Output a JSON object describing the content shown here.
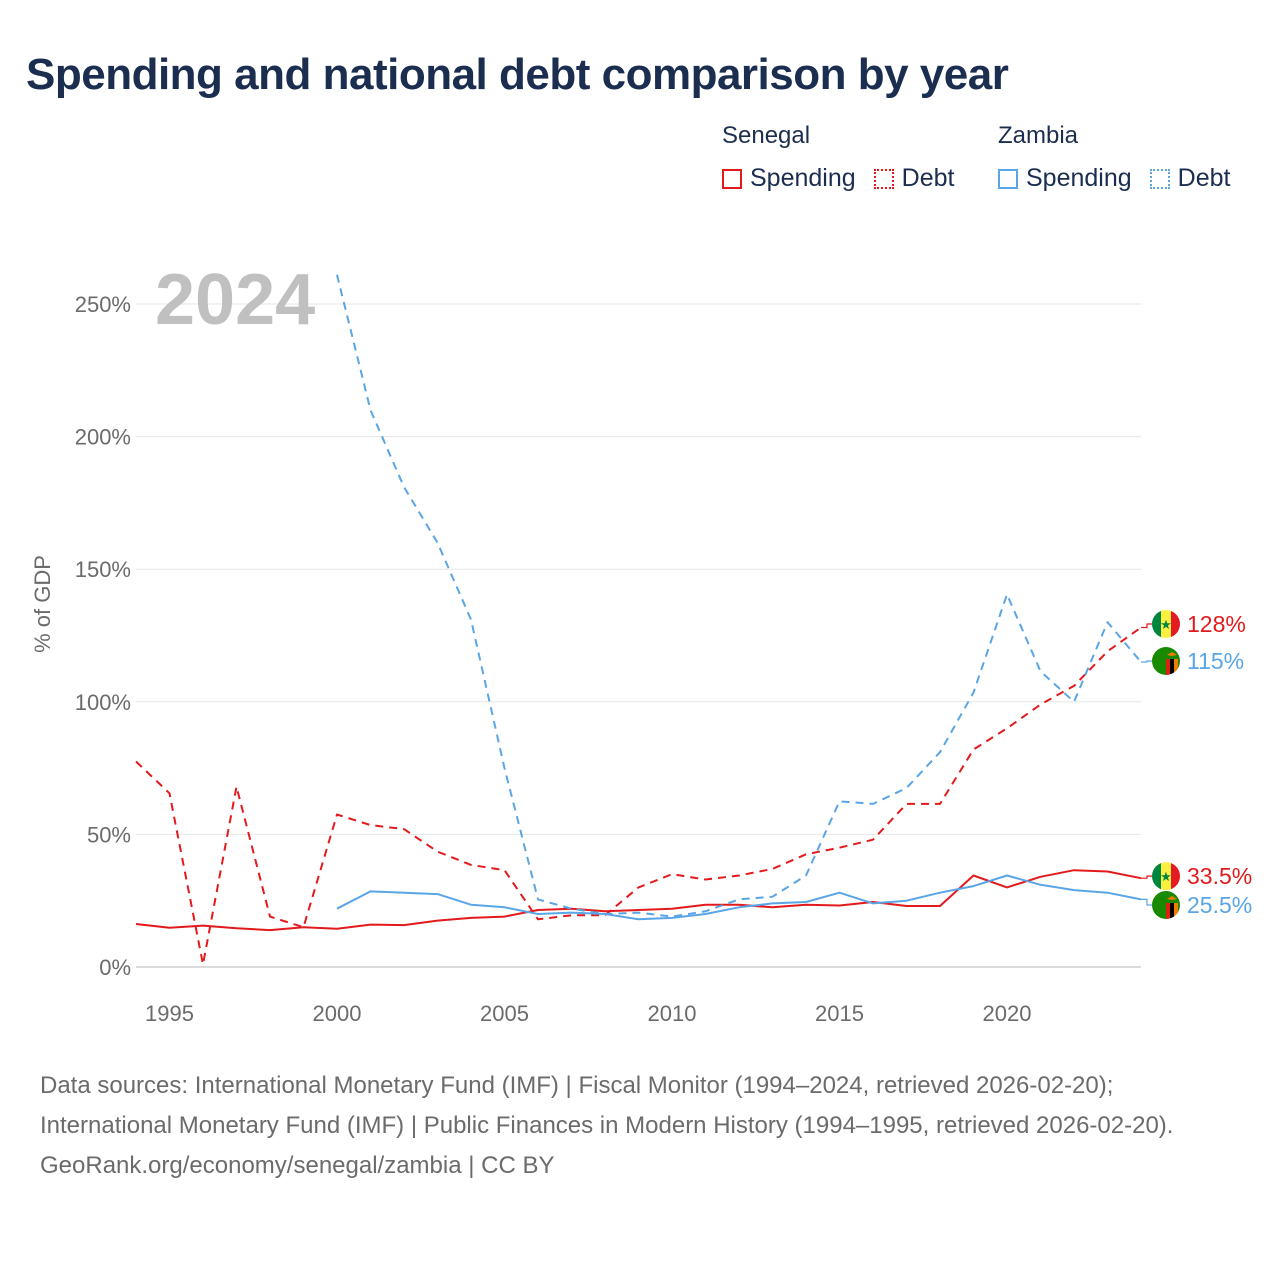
{
  "title": "Spending and national debt comparison by year",
  "legend": {
    "groups": [
      {
        "name": "Senegal",
        "color": "#e31a1c",
        "items": [
          "Spending",
          "Debt"
        ]
      },
      {
        "name": "Zambia",
        "color": "#5aa5e6",
        "items": [
          "Spending",
          "Debt"
        ]
      }
    ]
  },
  "footer": {
    "sources": "Data sources: International Monetary Fund (IMF) | Fiscal Monitor (1994–2024, retrieved 2026-02-20); International Monetary Fund (IMF) | Public Finances in Modern History (1994–1995, retrieved 2026-02-20).",
    "credit": "GeoRank.org/economy/senegal/zambia | CC BY"
  },
  "chart_data": {
    "type": "line",
    "title": "Spending and national debt comparison by year",
    "year_label": "2024",
    "ylabel": "% of GDP",
    "xlabel": "",
    "xlim": [
      1994,
      2024
    ],
    "ylim": [
      0,
      260
    ],
    "x_ticks": [
      1995,
      2000,
      2005,
      2010,
      2015,
      2020
    ],
    "y_ticks": [
      0,
      50,
      100,
      150,
      200,
      250
    ],
    "y_tick_labels": [
      "0%",
      "50%",
      "100%",
      "150%",
      "200%",
      "250%"
    ],
    "grid": true,
    "series": [
      {
        "name": "Senegal Spending",
        "country": "Senegal",
        "metric": "Spending",
        "color": "#e31a1c",
        "style": "solid",
        "x": [
          1994,
          1995,
          1996,
          1997,
          1998,
          1999,
          2000,
          2001,
          2002,
          2003,
          2004,
          2005,
          2006,
          2007,
          2008,
          2009,
          2010,
          2011,
          2012,
          2013,
          2014,
          2015,
          2016,
          2017,
          2018,
          2019,
          2020,
          2021,
          2022,
          2023,
          2024
        ],
        "values": [
          16.2,
          14.8,
          15.6,
          14.6,
          13.9,
          15.0,
          14.4,
          16.0,
          15.8,
          17.5,
          18.5,
          19.0,
          21.5,
          22.0,
          21.0,
          21.5,
          22.0,
          23.5,
          23.5,
          22.5,
          23.5,
          23.2,
          24.5,
          23.0,
          23.0,
          34.5,
          30.0,
          34.0,
          36.5,
          36.0,
          33.5
        ],
        "end_label": "33.5%"
      },
      {
        "name": "Senegal Debt",
        "country": "Senegal",
        "metric": "Debt",
        "color": "#e31a1c",
        "style": "dashed",
        "x": [
          1994,
          1995,
          1996,
          1997,
          1998,
          1999,
          2000,
          2001,
          2002,
          2003,
          2004,
          2005,
          2006,
          2007,
          2008,
          2009,
          2010,
          2011,
          2012,
          2013,
          2014,
          2015,
          2016,
          2017,
          2018,
          2019,
          2020,
          2021,
          2022,
          2023,
          2024
        ],
        "values": [
          77.5,
          65.5,
          1.0,
          68.0,
          19.0,
          15.0,
          57.5,
          53.5,
          52.0,
          43.5,
          38.5,
          36.5,
          18.0,
          19.5,
          19.5,
          30.0,
          35.0,
          33.0,
          34.5,
          37.0,
          42.5,
          45.0,
          48.0,
          61.5,
          61.5,
          82.0,
          90.0,
          99.0,
          106.0,
          119.0,
          128.0
        ],
        "end_label": "128%"
      },
      {
        "name": "Zambia Spending",
        "country": "Zambia",
        "metric": "Spending",
        "color": "#5aa5e6",
        "style": "solid",
        "x": [
          2000,
          2001,
          2002,
          2003,
          2004,
          2005,
          2006,
          2007,
          2008,
          2009,
          2010,
          2011,
          2012,
          2013,
          2014,
          2015,
          2016,
          2017,
          2018,
          2019,
          2020,
          2021,
          2022,
          2023,
          2024
        ],
        "values": [
          22.0,
          28.5,
          28.0,
          27.5,
          23.5,
          22.5,
          20.0,
          20.5,
          20.0,
          18.0,
          18.5,
          20.0,
          22.5,
          24.0,
          24.5,
          28.0,
          24.0,
          25.0,
          28.0,
          30.5,
          34.5,
          31.0,
          29.0,
          28.0,
          25.5
        ],
        "end_label": "25.5%"
      },
      {
        "name": "Zambia Debt",
        "country": "Zambia",
        "metric": "Debt",
        "color": "#5aa5e6",
        "style": "dashed",
        "x": [
          2000,
          2001,
          2002,
          2003,
          2004,
          2005,
          2006,
          2007,
          2008,
          2009,
          2010,
          2011,
          2012,
          2013,
          2014,
          2015,
          2016,
          2017,
          2018,
          2019,
          2020,
          2021,
          2022,
          2023,
          2024
        ],
        "values": [
          261.0,
          210.0,
          181.0,
          160.0,
          131.0,
          75.0,
          25.5,
          22.0,
          20.0,
          20.5,
          19.0,
          21.0,
          25.5,
          26.5,
          34.5,
          62.5,
          61.5,
          67.5,
          81.0,
          103.5,
          140.5,
          111.5,
          100.0,
          130.0,
          115.0
        ],
        "end_label": "115%"
      }
    ]
  }
}
